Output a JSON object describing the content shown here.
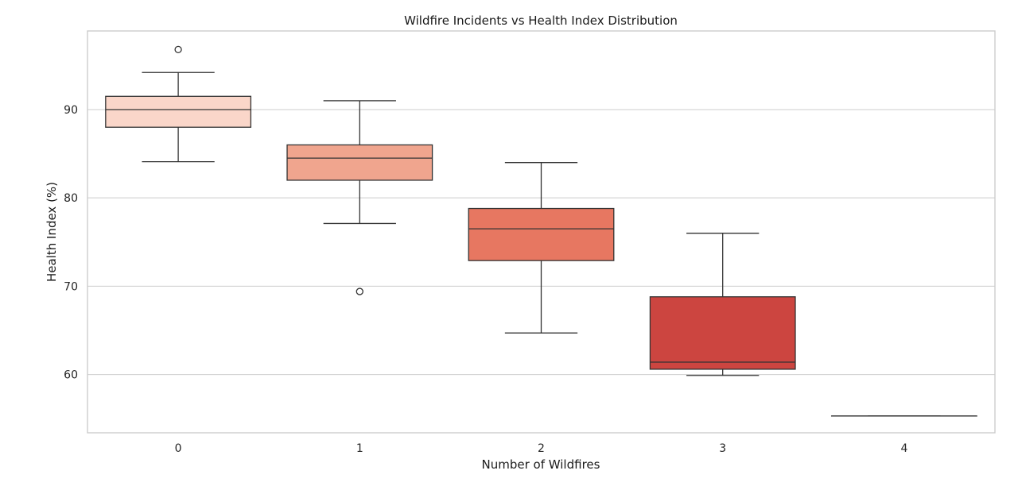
{
  "chart_data": {
    "type": "box",
    "title": "Wildfire Incidents vs Health Index Distribution",
    "xlabel": "Number of Wildfires",
    "ylabel": "Health Index (%)",
    "categories": [
      "0",
      "1",
      "2",
      "3",
      "4"
    ],
    "yticks": [
      60,
      70,
      80,
      90
    ],
    "ylim": [
      53.4,
      98.9
    ],
    "grid": true,
    "boxes": [
      {
        "category": "0",
        "whisker_low": 84.1,
        "q1": 88.0,
        "median": 90.0,
        "q3": 91.5,
        "whisker_high": 94.2,
        "fliers": [
          96.8
        ],
        "color": "#fad6c9"
      },
      {
        "category": "1",
        "whisker_low": 77.1,
        "q1": 82.0,
        "median": 84.5,
        "q3": 86.0,
        "whisker_high": 91.0,
        "fliers": [
          69.4
        ],
        "color": "#f0a58e"
      },
      {
        "category": "2",
        "whisker_low": 64.7,
        "q1": 72.9,
        "median": 76.5,
        "q3": 78.8,
        "whisker_high": 84.0,
        "fliers": [],
        "color": "#e77761"
      },
      {
        "category": "3",
        "whisker_low": 59.9,
        "q1": 60.6,
        "median": 61.4,
        "q3": 68.8,
        "whisker_high": 76.0,
        "fliers": [],
        "color": "#cc4540"
      },
      {
        "category": "4",
        "whisker_low": 55.3,
        "q1": 55.3,
        "median": 55.3,
        "q3": 55.3,
        "whisker_high": 55.3,
        "fliers": [],
        "color": "#b02124"
      }
    ]
  }
}
